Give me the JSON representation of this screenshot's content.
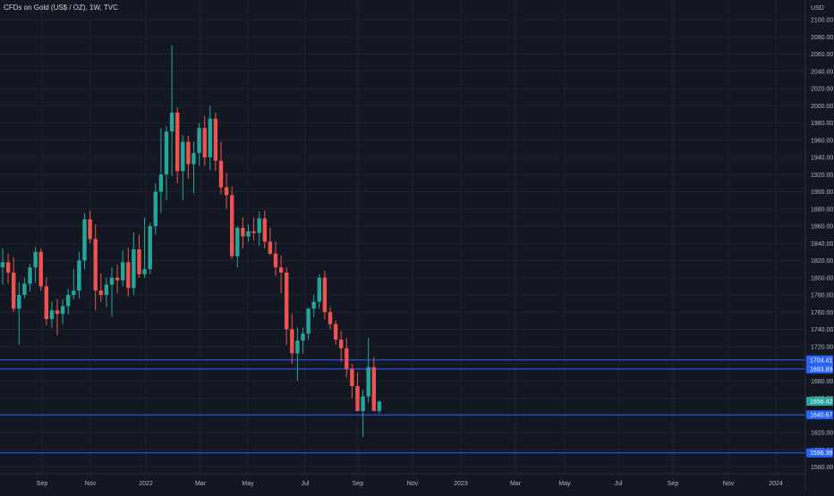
{
  "header": {
    "title": "CFDs on Gold (US$ / OZ), 1W, TVC"
  },
  "colors": {
    "background": "#131722",
    "grid": "#1e222d",
    "axis_text": "#b2b5be",
    "up": "#26a69a",
    "down": "#ef5350",
    "hline": "#2962ff",
    "hline_label_bg": "#2962ff",
    "price_label_bg": "#26a69a"
  },
  "chart_data": {
    "type": "candlestick",
    "currency_label": "USD",
    "ylim": [
      1570,
      2118
    ],
    "y_ticks": [
      1580,
      1600,
      1620,
      1640,
      1660,
      1680,
      1700,
      1720,
      1740,
      1760,
      1780,
      1800,
      1820,
      1840,
      1860,
      1880,
      1900,
      1920,
      1940,
      1960,
      1980,
      2000,
      2020,
      2040,
      2060,
      2080,
      2100
    ],
    "x_labels": [
      "Sep",
      "Nov",
      "2022",
      "Mar",
      "May",
      "Jul",
      "Sep",
      "Nov",
      "2023",
      "Mar",
      "May",
      "Jul",
      "Sep",
      "Nov",
      "2024"
    ],
    "grid": true,
    "candles": [
      {
        "o": 1812,
        "h": 1834,
        "l": 1792,
        "c": 1818
      },
      {
        "o": 1818,
        "h": 1828,
        "l": 1793,
        "c": 1806
      },
      {
        "o": 1806,
        "h": 1824,
        "l": 1760,
        "c": 1764
      },
      {
        "o": 1764,
        "h": 1795,
        "l": 1722,
        "c": 1780
      },
      {
        "o": 1780,
        "h": 1800,
        "l": 1776,
        "c": 1793
      },
      {
        "o": 1793,
        "h": 1816,
        "l": 1784,
        "c": 1812
      },
      {
        "o": 1812,
        "h": 1836,
        "l": 1794,
        "c": 1830
      },
      {
        "o": 1830,
        "h": 1834,
        "l": 1785,
        "c": 1790
      },
      {
        "o": 1790,
        "h": 1800,
        "l": 1745,
        "c": 1752
      },
      {
        "o": 1752,
        "h": 1772,
        "l": 1742,
        "c": 1762
      },
      {
        "o": 1762,
        "h": 1775,
        "l": 1733,
        "c": 1758
      },
      {
        "o": 1758,
        "h": 1775,
        "l": 1746,
        "c": 1767
      },
      {
        "o": 1767,
        "h": 1787,
        "l": 1757,
        "c": 1780
      },
      {
        "o": 1780,
        "h": 1810,
        "l": 1775,
        "c": 1785
      },
      {
        "o": 1785,
        "h": 1830,
        "l": 1776,
        "c": 1820
      },
      {
        "o": 1820,
        "h": 1875,
        "l": 1810,
        "c": 1868
      },
      {
        "o": 1868,
        "h": 1878,
        "l": 1840,
        "c": 1845
      },
      {
        "o": 1845,
        "h": 1862,
        "l": 1762,
        "c": 1785
      },
      {
        "o": 1785,
        "h": 1805,
        "l": 1772,
        "c": 1780
      },
      {
        "o": 1780,
        "h": 1800,
        "l": 1766,
        "c": 1792
      },
      {
        "o": 1792,
        "h": 1812,
        "l": 1755,
        "c": 1800
      },
      {
        "o": 1800,
        "h": 1815,
        "l": 1782,
        "c": 1797
      },
      {
        "o": 1797,
        "h": 1832,
        "l": 1790,
        "c": 1818
      },
      {
        "o": 1818,
        "h": 1835,
        "l": 1778,
        "c": 1788
      },
      {
        "o": 1788,
        "h": 1853,
        "l": 1780,
        "c": 1833
      },
      {
        "o": 1833,
        "h": 1850,
        "l": 1800,
        "c": 1804
      },
      {
        "o": 1804,
        "h": 1870,
        "l": 1800,
        "c": 1810
      },
      {
        "o": 1810,
        "h": 1864,
        "l": 1804,
        "c": 1860
      },
      {
        "o": 1860,
        "h": 1910,
        "l": 1850,
        "c": 1900
      },
      {
        "o": 1900,
        "h": 1974,
        "l": 1875,
        "c": 1920
      },
      {
        "o": 1920,
        "h": 1976,
        "l": 1890,
        "c": 1970
      },
      {
        "o": 1970,
        "h": 2070,
        "l": 1918,
        "c": 1992
      },
      {
        "o": 1992,
        "h": 1998,
        "l": 1910,
        "c": 1924
      },
      {
        "o": 1924,
        "h": 1966,
        "l": 1890,
        "c": 1958
      },
      {
        "o": 1958,
        "h": 1965,
        "l": 1915,
        "c": 1932
      },
      {
        "o": 1932,
        "h": 1958,
        "l": 1898,
        "c": 1945
      },
      {
        "o": 1945,
        "h": 1980,
        "l": 1930,
        "c": 1974
      },
      {
        "o": 1974,
        "h": 1988,
        "l": 1930,
        "c": 1940
      },
      {
        "o": 1940,
        "h": 2000,
        "l": 1925,
        "c": 1985
      },
      {
        "o": 1985,
        "h": 1992,
        "l": 1924,
        "c": 1936
      },
      {
        "o": 1936,
        "h": 1958,
        "l": 1897,
        "c": 1905
      },
      {
        "o": 1905,
        "h": 1922,
        "l": 1880,
        "c": 1896
      },
      {
        "o": 1896,
        "h": 1906,
        "l": 1822,
        "c": 1825
      },
      {
        "o": 1825,
        "h": 1860,
        "l": 1812,
        "c": 1858
      },
      {
        "o": 1858,
        "h": 1870,
        "l": 1834,
        "c": 1848
      },
      {
        "o": 1848,
        "h": 1862,
        "l": 1842,
        "c": 1854
      },
      {
        "o": 1854,
        "h": 1870,
        "l": 1843,
        "c": 1852
      },
      {
        "o": 1852,
        "h": 1877,
        "l": 1837,
        "c": 1869
      },
      {
        "o": 1869,
        "h": 1878,
        "l": 1834,
        "c": 1842
      },
      {
        "o": 1842,
        "h": 1858,
        "l": 1826,
        "c": 1828
      },
      {
        "o": 1828,
        "h": 1842,
        "l": 1802,
        "c": 1812
      },
      {
        "o": 1812,
        "h": 1826,
        "l": 1782,
        "c": 1806
      },
      {
        "o": 1806,
        "h": 1812,
        "l": 1722,
        "c": 1740
      },
      {
        "o": 1740,
        "h": 1758,
        "l": 1700,
        "c": 1712
      },
      {
        "o": 1712,
        "h": 1742,
        "l": 1680,
        "c": 1727
      },
      {
        "o": 1727,
        "h": 1742,
        "l": 1712,
        "c": 1735
      },
      {
        "o": 1735,
        "h": 1765,
        "l": 1728,
        "c": 1764
      },
      {
        "o": 1764,
        "h": 1780,
        "l": 1754,
        "c": 1772
      },
      {
        "o": 1772,
        "h": 1804,
        "l": 1764,
        "c": 1800
      },
      {
        "o": 1800,
        "h": 1808,
        "l": 1752,
        "c": 1760
      },
      {
        "o": 1760,
        "h": 1766,
        "l": 1740,
        "c": 1746
      },
      {
        "o": 1746,
        "h": 1750,
        "l": 1722,
        "c": 1728
      },
      {
        "o": 1728,
        "h": 1738,
        "l": 1702,
        "c": 1718
      },
      {
        "o": 1718,
        "h": 1730,
        "l": 1684,
        "c": 1694
      },
      {
        "o": 1694,
        "h": 1700,
        "l": 1660,
        "c": 1674
      },
      {
        "o": 1674,
        "h": 1690,
        "l": 1645,
        "c": 1645
      },
      {
        "o": 1645,
        "h": 1670,
        "l": 1615,
        "c": 1662
      },
      {
        "o": 1662,
        "h": 1730,
        "l": 1655,
        "c": 1696
      },
      {
        "o": 1696,
        "h": 1708,
        "l": 1645,
        "c": 1645
      },
      {
        "o": 1645,
        "h": 1657,
        "l": 1642,
        "c": 1656
      }
    ],
    "horizontal_lines": [
      {
        "price": 1704.41,
        "label": "1704.41"
      },
      {
        "price": 1693.89,
        "label": "1693.89"
      },
      {
        "price": 1640.67,
        "label": "1640.67"
      },
      {
        "price": 1596.39,
        "label": "1596.39"
      }
    ],
    "last_price": {
      "price": 1656.42,
      "label": "1656.42"
    }
  }
}
